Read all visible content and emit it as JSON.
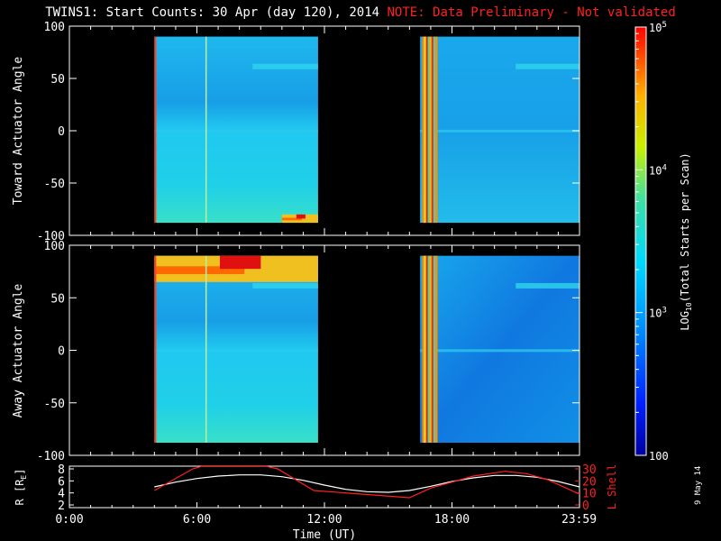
{
  "title": "TWINS1: Start Counts: 30 Apr (day 120), 2014",
  "note": "NOTE: Data Preliminary - Not validated",
  "date_stamp": "9 May 14",
  "colors": {
    "background": "#000000",
    "axes": "#ffffff",
    "note": "#ff2020",
    "r_trace": "#ffffff",
    "lshell_trace": "#ff2020"
  },
  "chart_data": [
    {
      "type": "heatmap",
      "name": "toward",
      "ylabel": "Toward Actuator Angle",
      "ylim": [
        -100,
        100
      ],
      "yticks": [
        "100",
        "50",
        "0",
        "-50",
        "-100"
      ],
      "xlim": [
        0,
        24
      ],
      "data_blocks": [
        {
          "x_start": 4.0,
          "x_end": 11.7,
          "y_start": -88,
          "y_end": 90,
          "level": "low"
        },
        {
          "x_start": 16.5,
          "x_end": 24.0,
          "y_start": -88,
          "y_end": 90,
          "level": "low"
        }
      ],
      "hot_regions": [
        {
          "x_start": 10.0,
          "x_end": 11.7,
          "y_start": -88,
          "y_end": -80,
          "level": "high"
        },
        {
          "x_start": 16.6,
          "x_end": 17.3,
          "y_start": -88,
          "y_end": 90,
          "level": "high"
        }
      ]
    },
    {
      "type": "heatmap",
      "name": "away",
      "ylabel": "Away Actuator Angle",
      "ylim": [
        -100,
        100
      ],
      "yticks": [
        "100",
        "50",
        "0",
        "-50",
        "-100"
      ],
      "xlim": [
        0,
        24
      ],
      "data_blocks": [
        {
          "x_start": 4.0,
          "x_end": 11.7,
          "y_start": -88,
          "y_end": 90,
          "level": "low"
        },
        {
          "x_start": 16.5,
          "x_end": 24.0,
          "y_start": -88,
          "y_end": 90,
          "level": "low"
        }
      ],
      "hot_regions": [
        {
          "x_start": 4.0,
          "x_end": 11.7,
          "y_start": 65,
          "y_end": 90,
          "level": "high"
        },
        {
          "x_start": 16.6,
          "x_end": 17.3,
          "y_start": -88,
          "y_end": 90,
          "level": "high"
        }
      ]
    },
    {
      "type": "line",
      "name": "orbit",
      "ylabel": "R [R",
      "ylabel_sub": "E",
      "ylabel_end": "]",
      "ylabel_right": "L Shell",
      "ylim_left": [
        2,
        8
      ],
      "ylim_right": [
        0,
        30
      ],
      "yticks_left": [
        "8",
        "6",
        "4",
        "2"
      ],
      "yticks_right": [
        "30",
        "20",
        "10",
        "0"
      ],
      "xlabel": "Time (UT)",
      "xticks": [
        {
          "x": 0,
          "label": "0:00"
        },
        {
          "x": 6,
          "label": "6:00"
        },
        {
          "x": 12,
          "label": "12:00"
        },
        {
          "x": 18,
          "label": "18:00"
        },
        {
          "x": 23.98,
          "label": "23:59"
        }
      ],
      "series": [
        {
          "name": "R",
          "color": "#ffffff",
          "x": [
            4.0,
            5.0,
            6.0,
            7.0,
            8.0,
            9.0,
            10.0,
            11.0,
            12.0,
            13.0,
            14.0,
            15.0,
            16.0,
            17.0,
            18.0,
            19.0,
            20.0,
            21.0,
            22.0,
            23.0,
            24.0
          ],
          "y": [
            5.0,
            5.8,
            6.4,
            6.8,
            7.0,
            7.0,
            6.7,
            6.1,
            5.3,
            4.6,
            4.2,
            4.1,
            4.4,
            5.1,
            5.9,
            6.5,
            6.9,
            6.9,
            6.6,
            5.9,
            5.0
          ]
        },
        {
          "name": "L Shell",
          "color": "#ff2020",
          "x": [
            4.0,
            5.8,
            6.2,
            9.3,
            9.8,
            11.5,
            16.0,
            17.0,
            18.0,
            19.0,
            20.5,
            21.5,
            22.5,
            24.0
          ],
          "y": [
            12,
            30,
            32,
            32,
            30,
            12,
            6,
            14,
            19,
            24,
            28,
            26,
            21,
            9
          ]
        }
      ]
    }
  ],
  "colorbar": {
    "label_main": "LOG",
    "label_sub": "10",
    "label_rest": "(Total Starts per Scan)",
    "ticks": [
      {
        "value": 100,
        "base": "100",
        "exp": ""
      },
      {
        "value": 1000,
        "base": "10",
        "exp": "3"
      },
      {
        "value": 10000,
        "base": "10",
        "exp": "4"
      },
      {
        "value": 100000,
        "base": "10",
        "exp": "5"
      }
    ],
    "range": [
      100,
      100000
    ]
  }
}
